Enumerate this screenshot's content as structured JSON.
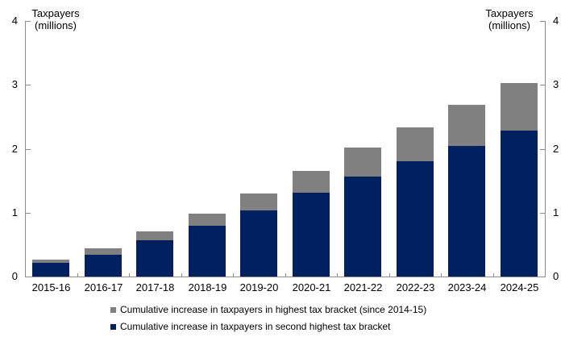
{
  "chart_data": {
    "type": "bar",
    "stacked": true,
    "grid": false,
    "title": "",
    "axis_title_left": [
      "Taxpayers",
      "(millions)"
    ],
    "axis_title_right": [
      "Taxpayers",
      "(millions)"
    ],
    "categories": [
      "2015-16",
      "2016-17",
      "2017-18",
      "2018-19",
      "2019-20",
      "2020-21",
      "2021-22",
      "2022-23",
      "2023-24",
      "2024-25"
    ],
    "series": [
      {
        "name": "Cumulative increase in taxpayers in second highest tax bracket",
        "color": "#002060",
        "values": [
          0.21,
          0.34,
          0.57,
          0.8,
          1.03,
          1.31,
          1.56,
          1.8,
          2.05,
          2.28
        ]
      },
      {
        "name": "Cumulative increase in taxpayers in highest tax bracket (since 2014-15)",
        "color": "#808080",
        "values": [
          0.05,
          0.1,
          0.14,
          0.19,
          0.27,
          0.34,
          0.45,
          0.53,
          0.64,
          0.74
        ]
      }
    ],
    "totals": [
      0.26,
      0.44,
      0.71,
      0.99,
      1.3,
      1.65,
      2.01,
      2.33,
      2.69,
      3.02
    ],
    "ylim": [
      0,
      4
    ],
    "yticks": [
      "0",
      "1",
      "2",
      "3",
      "4"
    ],
    "axis_color": "#8c8c8c",
    "legend_position": "bottom-left",
    "legend_order": [
      1,
      0
    ]
  }
}
